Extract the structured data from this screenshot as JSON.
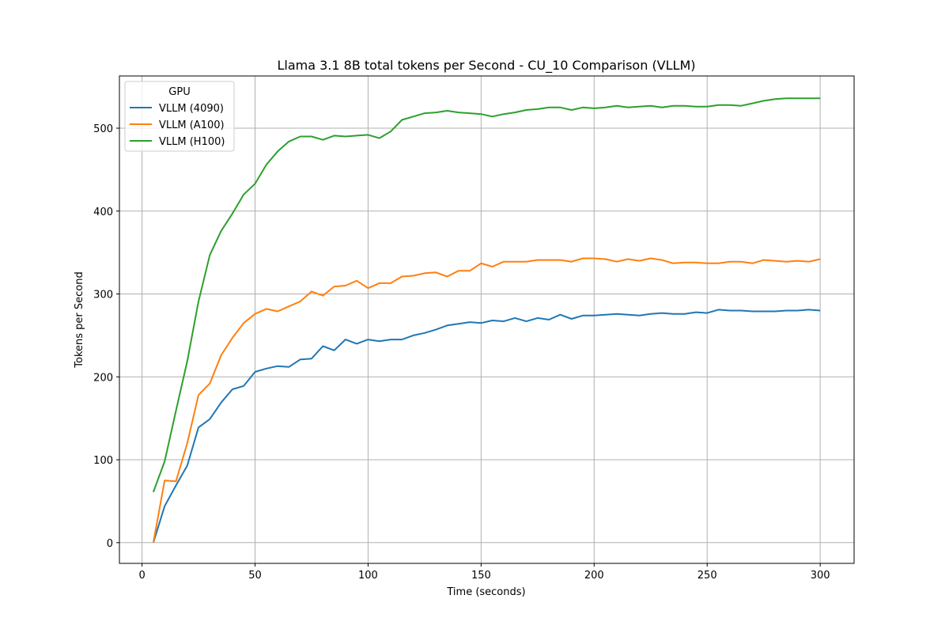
{
  "chart_data": {
    "type": "line",
    "title": "Llama 3.1 8B total tokens per Second - CU_10 Comparison (VLLM)",
    "xlabel": "Time (seconds)",
    "ylabel": "Tokens per Second",
    "xlim": [
      -10,
      315
    ],
    "ylim": [
      -25,
      563
    ],
    "xticks": [
      0,
      50,
      100,
      150,
      200,
      250,
      300
    ],
    "yticks": [
      0,
      100,
      200,
      300,
      400,
      500
    ],
    "grid": true,
    "legend": {
      "title": "GPU",
      "position": "top-left"
    },
    "x": [
      5,
      10,
      15,
      20,
      25,
      30,
      35,
      40,
      45,
      50,
      55,
      60,
      65,
      70,
      75,
      80,
      85,
      90,
      95,
      100,
      105,
      110,
      115,
      120,
      125,
      130,
      135,
      140,
      145,
      150,
      155,
      160,
      165,
      170,
      175,
      180,
      185,
      190,
      195,
      200,
      205,
      210,
      215,
      220,
      225,
      230,
      235,
      240,
      245,
      250,
      255,
      260,
      265,
      270,
      275,
      280,
      285,
      290,
      295,
      300
    ],
    "series": [
      {
        "name": "VLLM (4090)",
        "color": "#1f77b4",
        "values": [
          0,
          44,
          69,
          93,
          139,
          149,
          169,
          185,
          189,
          206,
          210,
          213,
          212,
          221,
          222,
          237,
          232,
          245,
          240,
          245,
          243,
          245,
          245,
          250,
          253,
          257,
          262,
          264,
          266,
          265,
          268,
          267,
          271,
          267,
          271,
          269,
          275,
          270,
          274,
          274,
          275,
          276,
          275,
          274,
          276,
          277,
          276,
          276,
          278,
          277,
          281,
          280,
          280,
          279,
          279,
          279,
          280,
          280,
          281,
          280
        ]
      },
      {
        "name": "VLLM (A100)",
        "color": "#ff7f0e",
        "values": [
          0,
          75,
          74,
          120,
          178,
          192,
          226,
          247,
          265,
          276,
          282,
          279,
          285,
          291,
          303,
          298,
          309,
          310,
          316,
          307,
          313,
          313,
          321,
          322,
          325,
          326,
          321,
          328,
          328,
          337,
          333,
          339,
          339,
          339,
          341,
          341,
          341,
          339,
          343,
          343,
          342,
          339,
          342,
          340,
          343,
          341,
          337,
          338,
          338,
          337,
          337,
          339,
          339,
          337,
          341,
          340,
          339,
          340,
          339,
          342
        ]
      },
      {
        "name": "VLLM (H100)",
        "color": "#2ca02c",
        "values": [
          61,
          98,
          159,
          219,
          291,
          347,
          376,
          397,
          420,
          433,
          456,
          472,
          484,
          490,
          490,
          486,
          491,
          490,
          491,
          492,
          488,
          496,
          510,
          514,
          518,
          519,
          521,
          519,
          518,
          517,
          514,
          517,
          519,
          522,
          523,
          525,
          525,
          522,
          525,
          524,
          525,
          527,
          525,
          526,
          527,
          525,
          527,
          527,
          526,
          526,
          528,
          528,
          527,
          530,
          533,
          535,
          536,
          536,
          536,
          536
        ]
      }
    ]
  }
}
